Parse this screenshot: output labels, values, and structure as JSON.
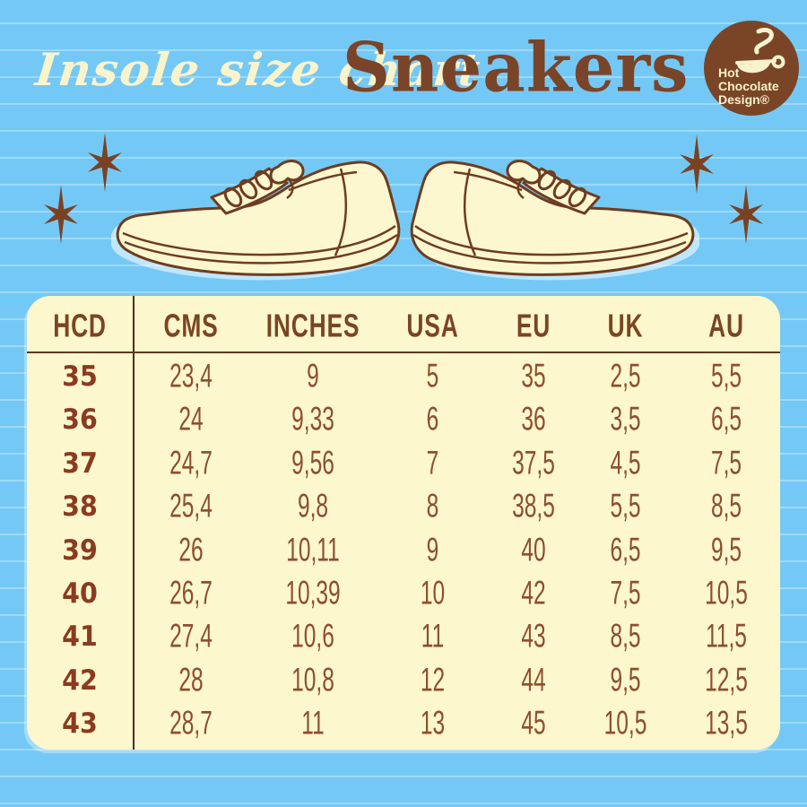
{
  "header": {
    "script_title": "Insole size chart",
    "product_title": "Sneakers"
  },
  "logo": {
    "line1": "Hot",
    "line2": "Chocolate",
    "line3": "Design®",
    "icon": "cup-icon"
  },
  "hero": {
    "icons": [
      "sparkle-icon",
      "sparkle-icon",
      "sparkle-icon",
      "sparkle-icon"
    ],
    "illustrations": [
      "sneaker-left-illustration",
      "sneaker-right-illustration"
    ]
  },
  "chart_data": {
    "type": "table",
    "title": "Insole size chart — Sneakers",
    "columns": [
      "HCD",
      "CMS",
      "INCHES",
      "USA",
      "EU",
      "UK",
      "AU"
    ],
    "rows": [
      [
        "35",
        "23,4",
        "9",
        "5",
        "35",
        "2,5",
        "5,5"
      ],
      [
        "36",
        "24",
        "9,33",
        "6",
        "36",
        "3,5",
        "6,5"
      ],
      [
        "37",
        "24,7",
        "9,56",
        "7",
        "37,5",
        "4,5",
        "7,5"
      ],
      [
        "38",
        "25,4",
        "9,8",
        "8",
        "38,5",
        "5,5",
        "8,5"
      ],
      [
        "39",
        "26",
        "10,11",
        "9",
        "40",
        "6,5",
        "9,5"
      ],
      [
        "40",
        "26,7",
        "10,39",
        "10",
        "42",
        "7,5",
        "10,5"
      ],
      [
        "41",
        "27,4",
        "10,6",
        "11",
        "43",
        "8,5",
        "11,5"
      ],
      [
        "42",
        "28",
        "10,8",
        "12",
        "44",
        "9,5",
        "12,5"
      ],
      [
        "43",
        "28,7",
        "11",
        "13",
        "45",
        "10,5",
        "13,5"
      ]
    ],
    "layout": {
      "grid": "off",
      "hcd_column_divider": true,
      "header_underline": true
    }
  },
  "colors": {
    "background_blue": "#74c8f5",
    "stripe_blue": "#9bdaf9",
    "cream": "#fcf7cd",
    "brown": "#7a4428",
    "table_number_brown": "#8d4e30",
    "hcd_brown": "#8a3b20",
    "divider_dark_brown": "#4b2f1c"
  }
}
